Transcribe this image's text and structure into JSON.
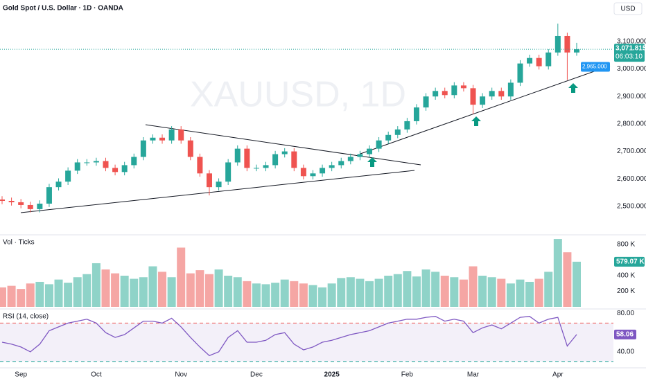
{
  "chart_data": [
    {
      "type": "candlestick",
      "title": "Gold Spot / U.S. Dollar · 1D · OANDA",
      "watermark": "XAUUSD, 1D",
      "currency": "USD",
      "countdown": "06:03:10",
      "last_label": "3,071.815",
      "alert": {
        "value": 2965,
        "label": "2,965.000"
      },
      "up_color": "#26a69a",
      "down_color": "#ef5350",
      "categories": [
        null,
        null,
        "Sep",
        null,
        null,
        null,
        null,
        null,
        null,
        null,
        "Oct",
        null,
        null,
        null,
        null,
        null,
        null,
        null,
        null,
        "Nov",
        null,
        null,
        null,
        null,
        null,
        null,
        null,
        "Dec",
        null,
        null,
        null,
        null,
        null,
        null,
        null,
        "2025",
        null,
        null,
        null,
        null,
        null,
        null,
        null,
        "Feb",
        null,
        null,
        null,
        null,
        null,
        null,
        "Mar",
        null,
        null,
        null,
        null,
        null,
        null,
        null,
        null,
        "Apr",
        null,
        null
      ],
      "open": [
        2525,
        2520,
        2515,
        2505,
        2490,
        2510,
        2570,
        2590,
        2630,
        2660,
        2660,
        2665,
        2640,
        2625,
        2650,
        2680,
        2740,
        2750,
        2740,
        2780,
        2740,
        2680,
        2620,
        2570,
        2590,
        2660,
        2710,
        2640,
        2640,
        2650,
        2690,
        2700,
        2640,
        2610,
        2620,
        2640,
        2650,
        2665,
        2680,
        2690,
        2710,
        2740,
        2760,
        2780,
        2810,
        2860,
        2900,
        2920,
        2905,
        2940,
        2930,
        2870,
        2900,
        2920,
        2900,
        2950,
        3020,
        3040,
        3010,
        3060,
        3120,
        3060
      ],
      "high": [
        2537,
        2532,
        2527,
        2517,
        2522,
        2582,
        2602,
        2642,
        2672,
        2672,
        2677,
        2677,
        2652,
        2662,
        2692,
        2752,
        2762,
        2762,
        2792,
        2792,
        2752,
        2692,
        2632,
        2602,
        2672,
        2722,
        2722,
        2652,
        2662,
        2702,
        2712,
        2712,
        2652,
        2632,
        2652,
        2662,
        2677,
        2692,
        2702,
        2722,
        2752,
        2772,
        2792,
        2822,
        2872,
        2912,
        2932,
        2932,
        2952,
        2952,
        2942,
        2912,
        2932,
        2932,
        2962,
        3032,
        3052,
        3052,
        3072,
        3165,
        3132,
        3095
      ],
      "low": [
        2508,
        2503,
        2493,
        2478,
        2478,
        2498,
        2558,
        2578,
        2618,
        2648,
        2648,
        2628,
        2613,
        2613,
        2638,
        2668,
        2728,
        2728,
        2728,
        2728,
        2668,
        2608,
        2540,
        2558,
        2578,
        2648,
        2628,
        2628,
        2628,
        2638,
        2678,
        2628,
        2598,
        2598,
        2608,
        2628,
        2638,
        2653,
        2668,
        2678,
        2698,
        2728,
        2748,
        2768,
        2798,
        2848,
        2888,
        2893,
        2893,
        2918,
        2835,
        2858,
        2888,
        2888,
        2888,
        2938,
        3008,
        2998,
        2998,
        3048,
        2960,
        3048
      ],
      "close": [
        2520,
        2515,
        2505,
        2490,
        2510,
        2570,
        2590,
        2630,
        2660,
        2660,
        2665,
        2640,
        2625,
        2650,
        2680,
        2740,
        2750,
        2740,
        2780,
        2740,
        2680,
        2620,
        2570,
        2590,
        2660,
        2710,
        2640,
        2640,
        2650,
        2690,
        2700,
        2640,
        2610,
        2620,
        2640,
        2650,
        2665,
        2680,
        2690,
        2710,
        2740,
        2760,
        2780,
        2810,
        2860,
        2900,
        2920,
        2905,
        2940,
        2930,
        2870,
        2900,
        2920,
        2900,
        2950,
        3020,
        3040,
        3010,
        3060,
        3120,
        3060,
        3071.815
      ],
      "ylim": [
        2399,
        3251
      ],
      "yticks": [
        {
          "value": 3100,
          "label": "3,100.000"
        },
        {
          "value": 3000,
          "label": "3,000.000"
        },
        {
          "value": 2900,
          "label": "2,900.000"
        },
        {
          "value": 2800,
          "label": "2,800.000"
        },
        {
          "value": 2700,
          "label": "2,700.000"
        },
        {
          "value": 2600,
          "label": "2,600.000"
        },
        {
          "value": 2500,
          "label": "2,500.000"
        }
      ]
    },
    {
      "type": "bar",
      "title": "Vol · Ticks",
      "up_color": "#8fd3c8",
      "down_color": "#f5a6a4",
      "label_color": "#26a69a",
      "values": [
        250000,
        270000,
        230000,
        300000,
        320000,
        290000,
        350000,
        310000,
        380000,
        420000,
        560000,
        480000,
        430000,
        400000,
        360000,
        380000,
        520000,
        450000,
        380000,
        760000,
        430000,
        470000,
        420000,
        480000,
        400000,
        380000,
        330000,
        300000,
        290000,
        310000,
        350000,
        330000,
        300000,
        280000,
        250000,
        300000,
        370000,
        380000,
        360000,
        330000,
        360000,
        400000,
        420000,
        460000,
        390000,
        480000,
        450000,
        400000,
        380000,
        350000,
        520000,
        400000,
        380000,
        360000,
        300000,
        350000,
        320000,
        360000,
        450000,
        870000,
        700000,
        579070
      ],
      "last_label": "579.07 K",
      "ylim": [
        0,
        915000
      ],
      "yticks": [
        {
          "value": 800000,
          "label": "800 K"
        },
        {
          "value": 400000,
          "label": "400 K"
        },
        {
          "value": 200000,
          "label": "200 K"
        }
      ]
    },
    {
      "type": "line",
      "title": "RSI (14, close)",
      "color": "#7e57c2",
      "values": [
        50,
        48,
        45,
        40,
        48,
        62,
        66,
        70,
        72,
        74,
        70,
        60,
        55,
        58,
        65,
        72,
        72,
        70,
        75,
        66,
        55,
        45,
        36,
        40,
        55,
        62,
        50,
        50,
        52,
        58,
        60,
        48,
        42,
        45,
        50,
        52,
        55,
        58,
        60,
        62,
        66,
        70,
        72,
        74,
        74,
        76,
        77,
        72,
        74,
        72,
        60,
        65,
        68,
        64,
        70,
        76,
        77,
        70,
        74,
        76,
        46,
        58.06
      ],
      "levels": [
        70,
        30
      ],
      "ylim": [
        24,
        84
      ],
      "yticks": [
        {
          "value": 80,
          "label": "80.00"
        },
        {
          "value": 40,
          "label": "40.00"
        }
      ]
    }
  ]
}
